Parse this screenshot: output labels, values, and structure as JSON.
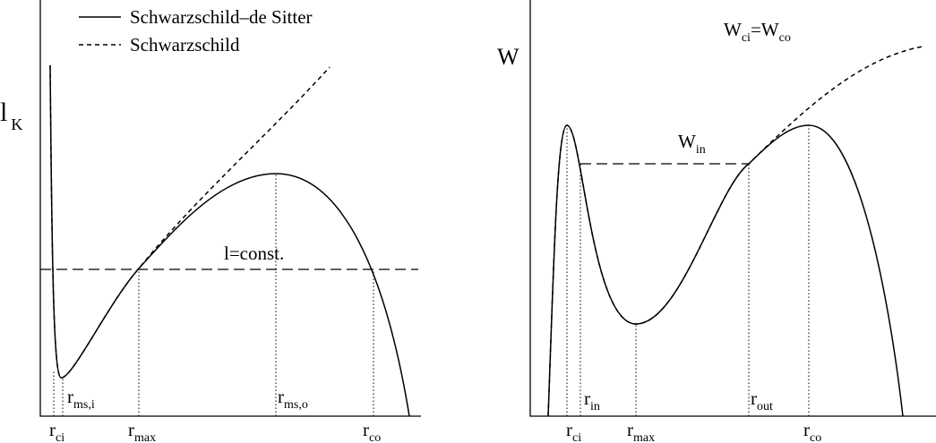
{
  "legend": {
    "solid": "Schwarzschild–de Sitter",
    "dashed": "Schwarzschild"
  },
  "left": {
    "ylabel": {
      "main": "l",
      "sub": "K"
    },
    "line_label": "l=const.",
    "labels": [
      {
        "main": "r",
        "sub": "ci"
      },
      {
        "main": "r",
        "sub": "ms,i"
      },
      {
        "main": "r",
        "sub": "max"
      },
      {
        "main": "r",
        "sub": "ms,o"
      },
      {
        "main": "r",
        "sub": "co"
      }
    ]
  },
  "right": {
    "ylabel": "W",
    "equation": {
      "left": {
        "main": "W",
        "sub": "ci"
      },
      "op": "=",
      "right": {
        "main": "W",
        "sub": "co"
      }
    },
    "line_label": {
      "main": "W",
      "sub": "in"
    },
    "labels": [
      {
        "main": "r",
        "sub": "ci"
      },
      {
        "main": "r",
        "sub": "in"
      },
      {
        "main": "r",
        "sub": "max"
      },
      {
        "main": "r",
        "sub": "out"
      },
      {
        "main": "r",
        "sub": "co"
      }
    ]
  }
}
